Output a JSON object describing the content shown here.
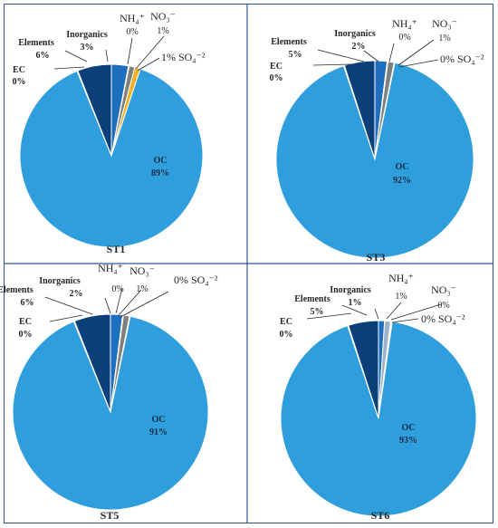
{
  "colors": {
    "OC": "#2e9fdc",
    "EC": "#cfd8e3",
    "Elements": "#0b3f7a",
    "Inorganics": "#1e6fbe",
    "NH4": "#9fb3c8",
    "NO3": "#7f7f7f",
    "SO4": "#f0b323",
    "border": "#2f5597",
    "text": "#262626"
  },
  "chart_data": [
    {
      "type": "pie",
      "title": "ST1",
      "slices": [
        {
          "key": "OC",
          "name": "OC",
          "value": 89,
          "value_label": "89%"
        },
        {
          "key": "EC",
          "name": "EC",
          "value": 0,
          "value_label": "0%"
        },
        {
          "key": "Elements",
          "name": "Elements",
          "value": 6,
          "value_label": "6%"
        },
        {
          "key": "Inorganics",
          "name": "Inorganics",
          "value": 3,
          "value_label": "3%"
        },
        {
          "key": "NH4",
          "name": "NH₄⁺",
          "value": 0,
          "value_label": "0%"
        },
        {
          "key": "NO3",
          "name": "NO₃⁻",
          "value": 1,
          "value_label": "1%"
        },
        {
          "key": "SO4",
          "name": "SO₄⁻²",
          "value": 1,
          "value_label": "1%"
        }
      ]
    },
    {
      "type": "pie",
      "title": "ST3",
      "slices": [
        {
          "key": "OC",
          "name": "OC",
          "value": 92,
          "value_label": "92%"
        },
        {
          "key": "EC",
          "name": "EC",
          "value": 0,
          "value_label": "0%"
        },
        {
          "key": "Elements",
          "name": "Elements",
          "value": 5,
          "value_label": "5%"
        },
        {
          "key": "Inorganics",
          "name": "Inorganics",
          "value": 2,
          "value_label": "2%"
        },
        {
          "key": "NH4",
          "name": "NH₄⁺",
          "value": 0,
          "value_label": "0%"
        },
        {
          "key": "NO3",
          "name": "NO₃⁻",
          "value": 1,
          "value_label": "1%"
        },
        {
          "key": "SO4",
          "name": "SO₄⁻²",
          "value": 0,
          "value_label": "0%"
        }
      ]
    },
    {
      "type": "pie",
      "title": "ST5",
      "slices": [
        {
          "key": "OC",
          "name": "OC",
          "value": 91,
          "value_label": "91%"
        },
        {
          "key": "EC",
          "name": "EC",
          "value": 0,
          "value_label": "0%"
        },
        {
          "key": "Elements",
          "name": "Elements",
          "value": 6,
          "value_label": "6%"
        },
        {
          "key": "Inorganics",
          "name": "Inorganics",
          "value": 2,
          "value_label": "2%"
        },
        {
          "key": "NH4",
          "name": "NH₄⁺",
          "value": 0,
          "value_label": "0%"
        },
        {
          "key": "NO3",
          "name": "NO₃⁻",
          "value": 1,
          "value_label": "1%"
        },
        {
          "key": "SO4",
          "name": "SO₄⁻²",
          "value": 0,
          "value_label": "0%"
        }
      ]
    },
    {
      "type": "pie",
      "title": "ST6",
      "slices": [
        {
          "key": "OC",
          "name": "OC",
          "value": 93,
          "value_label": "93%"
        },
        {
          "key": "EC",
          "name": "EC",
          "value": 0,
          "value_label": "0%"
        },
        {
          "key": "Elements",
          "name": "Elements",
          "value": 5,
          "value_label": "5%"
        },
        {
          "key": "Inorganics",
          "name": "Inorganics",
          "value": 1,
          "value_label": "1%"
        },
        {
          "key": "NH4",
          "name": "NH₄⁺",
          "value": 1,
          "value_label": "1%"
        },
        {
          "key": "NO3",
          "name": "NO₃⁻",
          "value": 0,
          "value_label": "0%"
        },
        {
          "key": "SO4",
          "name": "SO₄⁻²",
          "value": 0,
          "value_label": "0%"
        }
      ]
    }
  ]
}
